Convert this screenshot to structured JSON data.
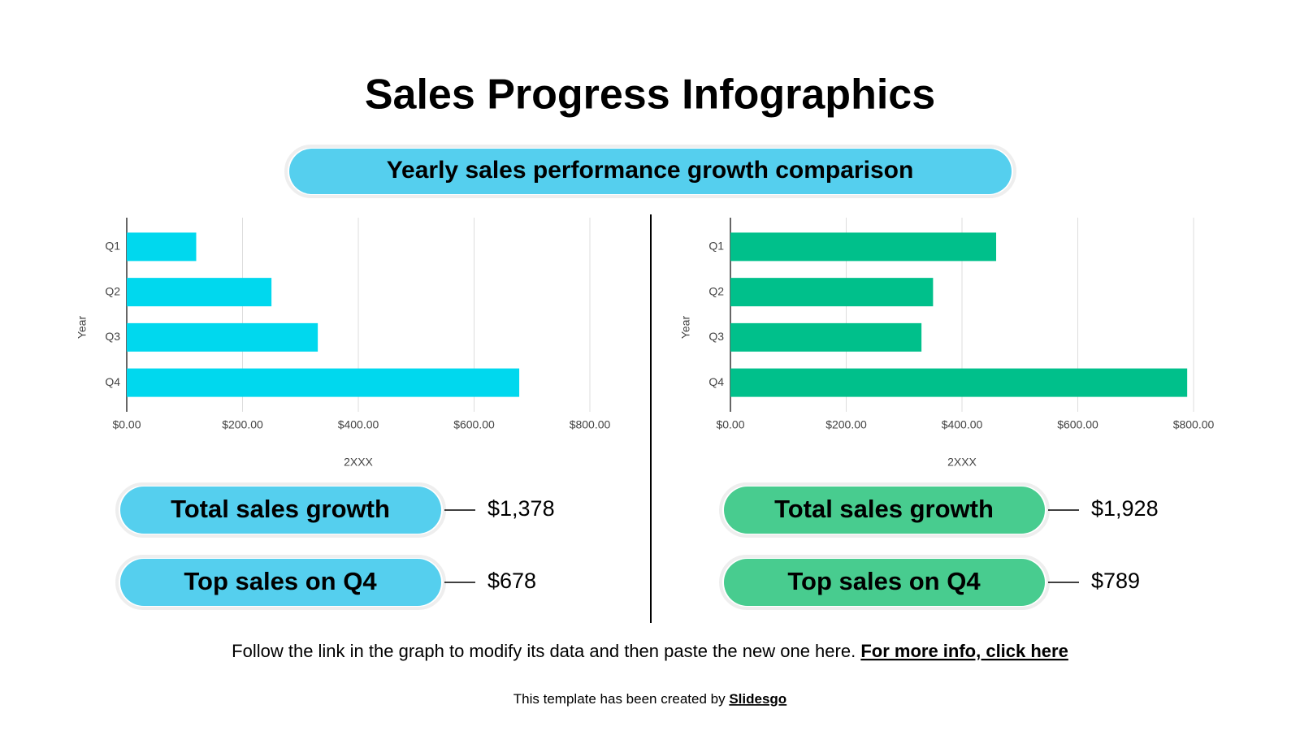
{
  "title": "Sales Progress Infographics",
  "subtitle": "Yearly sales performance growth comparison",
  "chart_data": [
    {
      "type": "bar",
      "orientation": "horizontal",
      "categories": [
        "Q1",
        "Q2",
        "Q3",
        "Q4"
      ],
      "values": [
        120,
        250,
        330,
        678
      ],
      "color": "#00d8ee",
      "xlim": [
        0,
        800
      ],
      "xticks": [
        {
          "value": 0,
          "label": "$0.00"
        },
        {
          "value": 200,
          "label": "$200.00"
        },
        {
          "value": 400,
          "label": "$400.00"
        },
        {
          "value": 600,
          "label": "$600.00"
        },
        {
          "value": 800,
          "label": "$800.00"
        }
      ],
      "x_label": "2XXX",
      "y_label": "Year",
      "grid": true,
      "stat_color": "#55cfee",
      "stats": [
        {
          "label": "Total sales growth",
          "value": "$1,378"
        },
        {
          "label": "Top sales on Q4",
          "value": "$678"
        }
      ]
    },
    {
      "type": "bar",
      "orientation": "horizontal",
      "categories": [
        "Q1",
        "Q2",
        "Q3",
        "Q4"
      ],
      "values": [
        459,
        350,
        330,
        789
      ],
      "color": "#00c08b",
      "xlim": [
        0,
        800
      ],
      "xticks": [
        {
          "value": 0,
          "label": "$0.00"
        },
        {
          "value": 200,
          "label": "$200.00"
        },
        {
          "value": 400,
          "label": "$400.00"
        },
        {
          "value": 600,
          "label": "$600.00"
        },
        {
          "value": 800,
          "label": "$800.00"
        }
      ],
      "x_label": "2XXX",
      "y_label": "Year",
      "grid": true,
      "stat_color": "#48cc8f",
      "stats": [
        {
          "label": "Total sales growth",
          "value": "$1,928"
        },
        {
          "label": "Top sales on Q4",
          "value": "$789"
        }
      ]
    }
  ],
  "footer": {
    "text": "Follow the link in the graph to modify its data and then paste the new one here.",
    "link": "For more info, click here"
  },
  "credit": {
    "text": "This template has been created by",
    "link": "Slidesgo"
  }
}
